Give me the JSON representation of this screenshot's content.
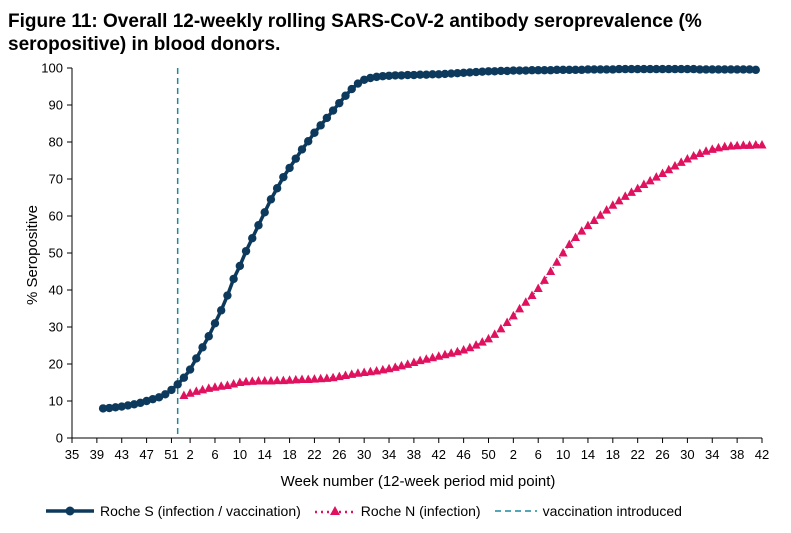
{
  "title": "Figure 11: Overall 12-weekly rolling SARS-CoV-2 antibody seroprevalence (% seropositive) in blood donors.",
  "chart_data": {
    "type": "line",
    "title": "Figure 11: Overall 12-weekly rolling SARS-CoV-2 antibody seroprevalence (% seropositive) in blood donors.",
    "xlabel": "Week number (12-week period mid point)",
    "ylabel": "% Seropositive",
    "ylim": [
      0,
      100
    ],
    "yticks": [
      0,
      10,
      20,
      30,
      40,
      50,
      60,
      70,
      80,
      90,
      100
    ],
    "x_period_count": 112,
    "xticks": [
      {
        "i": 0,
        "label": "35"
      },
      {
        "i": 4,
        "label": "39"
      },
      {
        "i": 8,
        "label": "43"
      },
      {
        "i": 12,
        "label": "47"
      },
      {
        "i": 16,
        "label": "51"
      },
      {
        "i": 19,
        "label": "2"
      },
      {
        "i": 23,
        "label": "6"
      },
      {
        "i": 27,
        "label": "10"
      },
      {
        "i": 31,
        "label": "14"
      },
      {
        "i": 35,
        "label": "18"
      },
      {
        "i": 39,
        "label": "22"
      },
      {
        "i": 43,
        "label": "26"
      },
      {
        "i": 47,
        "label": "30"
      },
      {
        "i": 51,
        "label": "34"
      },
      {
        "i": 55,
        "label": "38"
      },
      {
        "i": 59,
        "label": "42"
      },
      {
        "i": 63,
        "label": "46"
      },
      {
        "i": 67,
        "label": "50"
      },
      {
        "i": 71,
        "label": "2"
      },
      {
        "i": 75,
        "label": "6"
      },
      {
        "i": 79,
        "label": "10"
      },
      {
        "i": 83,
        "label": "14"
      },
      {
        "i": 87,
        "label": "18"
      },
      {
        "i": 91,
        "label": "22"
      },
      {
        "i": 95,
        "label": "26"
      },
      {
        "i": 99,
        "label": "30"
      },
      {
        "i": 103,
        "label": "34"
      },
      {
        "i": 107,
        "label": "38"
      },
      {
        "i": 111,
        "label": "42"
      }
    ],
    "series": [
      {
        "name": "Roche S (infection / vaccination)",
        "color": "#0d3a5c",
        "marker": "circle",
        "start_index": 5,
        "values": [
          8.0,
          8.1,
          8.3,
          8.5,
          8.8,
          9.1,
          9.5,
          10.0,
          10.5,
          11.0,
          11.8,
          13.0,
          14.5,
          16.3,
          18.5,
          21.5,
          24.5,
          27.5,
          31.0,
          34.5,
          38.5,
          43.0,
          46.5,
          50.5,
          54.0,
          57.5,
          61.0,
          64.5,
          67.5,
          70.5,
          73.0,
          75.5,
          78.0,
          80.2,
          82.5,
          84.5,
          86.5,
          88.5,
          90.5,
          92.5,
          94.3,
          95.8,
          96.8,
          97.3,
          97.6,
          97.8,
          97.9,
          98.0,
          98.0,
          98.1,
          98.1,
          98.2,
          98.2,
          98.3,
          98.3,
          98.4,
          98.5,
          98.6,
          98.7,
          98.8,
          98.9,
          99.0,
          99.1,
          99.1,
          99.2,
          99.2,
          99.3,
          99.3,
          99.3,
          99.4,
          99.4,
          99.4,
          99.4,
          99.5,
          99.5,
          99.5,
          99.5,
          99.5,
          99.6,
          99.6,
          99.6,
          99.6,
          99.6,
          99.7,
          99.7,
          99.7,
          99.7,
          99.7,
          99.7,
          99.7,
          99.7,
          99.7,
          99.7,
          99.7,
          99.7,
          99.7,
          99.6,
          99.6,
          99.6,
          99.6,
          99.6,
          99.6,
          99.6,
          99.6,
          99.6,
          99.5
        ]
      },
      {
        "name": "Roche N (infection)",
        "color": "#e0115f",
        "marker": "triangle",
        "start_index": 18,
        "values": [
          11.5,
          12.1,
          12.6,
          13.0,
          13.4,
          13.7,
          14.0,
          14.2,
          14.6,
          15.0,
          15.2,
          15.3,
          15.4,
          15.4,
          15.4,
          15.5,
          15.5,
          15.6,
          15.7,
          15.8,
          15.8,
          15.9,
          16.0,
          16.1,
          16.3,
          16.6,
          16.9,
          17.2,
          17.5,
          17.7,
          17.9,
          18.1,
          18.4,
          18.7,
          19.1,
          19.5,
          19.9,
          20.4,
          20.9,
          21.3,
          21.7,
          22.1,
          22.5,
          22.9,
          23.3,
          23.8,
          24.4,
          25.1,
          25.9,
          26.8,
          28.0,
          29.5,
          31.2,
          33.0,
          34.9,
          36.7,
          38.5,
          40.4,
          42.6,
          45.0,
          47.5,
          50.0,
          52.3,
          54.2,
          55.9,
          57.4,
          58.8,
          60.2,
          61.6,
          62.9,
          64.1,
          65.3,
          66.4,
          67.4,
          68.5,
          69.5,
          70.5,
          71.5,
          72.5,
          73.5,
          74.5,
          75.4,
          76.2,
          76.9,
          77.5,
          78.0,
          78.4,
          78.7,
          78.9,
          79.0,
          79.1,
          79.1,
          79.2,
          79.2
        ]
      }
    ],
    "annotations": [
      {
        "name": "vaccination introduced",
        "type": "vertical_line",
        "x_index": 17,
        "color": "#1a8a9e",
        "dashed": true
      }
    ],
    "legend_position": "bottom-left"
  },
  "legend": {
    "roche_s": "Roche S (infection / vaccination)",
    "roche_n": "Roche N (infection)",
    "vaccination": "vaccination introduced"
  },
  "colors": {
    "roche_s": "#0d3a5c",
    "roche_n": "#e0115f",
    "vaccination": "#1a8a9e"
  }
}
